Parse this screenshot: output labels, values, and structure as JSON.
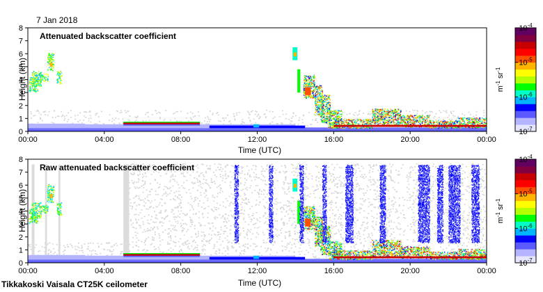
{
  "date": "7 Jan 2018",
  "footer": "Tikkakoski Vaisala CT25K ceilometer",
  "colorbar": {
    "unit_base": "m",
    "unit_exp1": "-1",
    "unit_sr": "sr",
    "unit_exp2": "-1",
    "ticks": [
      {
        "base": "10",
        "exp": "-4"
      },
      {
        "base": "10",
        "exp": "-5"
      },
      {
        "base": "10",
        "exp": "-6"
      },
      {
        "base": "10",
        "exp": "-7"
      }
    ],
    "colors": [
      "#e6e6ff",
      "#b4b4ff",
      "#5a5aff",
      "#0000ff",
      "#00b4ff",
      "#00ffc8",
      "#00ff00",
      "#b4ff00",
      "#ffff00",
      "#ffb400",
      "#ff5000",
      "#ff0000",
      "#c80000",
      "#800040",
      "#600060"
    ]
  },
  "chart_data": [
    {
      "type": "heatmap",
      "title": "Attenuated backscatter coefficient",
      "xlabel": "Time (UTC)",
      "ylabel": "Height (km)",
      "xlim": [
        "00:00",
        "24:00"
      ],
      "ylim": [
        0,
        8
      ],
      "xticks": [
        "00:00",
        "04:00",
        "08:00",
        "12:00",
        "16:00",
        "20:00",
        "00:00"
      ],
      "yticks": [
        "0",
        "1",
        "2",
        "3",
        "4",
        "5",
        "6",
        "7",
        "8"
      ],
      "color_scale": "log",
      "color_range": [
        1e-07,
        0.0001
      ],
      "features": [
        {
          "name": "elevated cloud",
          "time": [
            "00:00",
            "01:45"
          ],
          "height_km": [
            2.8,
            6.0
          ],
          "level": "1e-6 to 1e-5"
        },
        {
          "name": "cloud base layer",
          "time": [
            "05:00",
            "09:00"
          ],
          "height_km": [
            0.4,
            0.8
          ],
          "level": "1e-5 to 1e-4"
        },
        {
          "name": "cloud at 6 km",
          "time": [
            "13:50",
            "14:10"
          ],
          "height_km": [
            4.5,
            6.5
          ],
          "level": "1e-6 to 1e-5"
        },
        {
          "name": "precipitation fall streaks",
          "time": [
            "14:20",
            "16:40"
          ],
          "height_km": [
            0.2,
            4.3
          ],
          "level": "1e-6 to 1e-4"
        },
        {
          "name": "low cloud",
          "time": [
            "16:00",
            "24:00"
          ],
          "height_km": [
            0.2,
            1.8
          ],
          "level": "1e-6 to 1e-4"
        }
      ]
    },
    {
      "type": "heatmap",
      "title": "Raw attenuated backscatter coefficient",
      "xlabel": "Time (UTC)",
      "ylabel": "Height (km)",
      "xlim": [
        "00:00",
        "24:00"
      ],
      "ylim": [
        0,
        8
      ],
      "xticks": [
        "00:00",
        "04:00",
        "08:00",
        "12:00",
        "16:00",
        "20:00",
        "00:00"
      ],
      "yticks": [
        "0",
        "1",
        "2",
        "3",
        "4",
        "5",
        "6",
        "7",
        "8"
      ],
      "color_scale": "log",
      "color_range": [
        1e-07,
        0.0001
      ],
      "features": [
        {
          "name": "elevated cloud",
          "time": [
            "00:00",
            "01:45"
          ],
          "height_km": [
            2.8,
            6.0
          ],
          "level": "1e-6 to 1e-5"
        },
        {
          "name": "cloud base layer",
          "time": [
            "05:00",
            "09:00"
          ],
          "height_km": [
            0.4,
            0.8
          ],
          "level": "1e-5 to 1e-4"
        },
        {
          "name": "noise background",
          "time": [
            "05:00",
            "24:00"
          ],
          "height_km": [
            0,
            7.5
          ],
          "level": "1e-7 to 1e-6"
        },
        {
          "name": "precipitation fall streaks",
          "time": [
            "14:20",
            "16:40"
          ],
          "height_km": [
            0.2,
            4.3
          ],
          "level": "1e-6 to 1e-4"
        },
        {
          "name": "low cloud",
          "time": [
            "16:00",
            "24:00"
          ],
          "height_km": [
            0.2,
            1.8
          ],
          "level": "1e-6 to 1e-4"
        }
      ]
    }
  ]
}
